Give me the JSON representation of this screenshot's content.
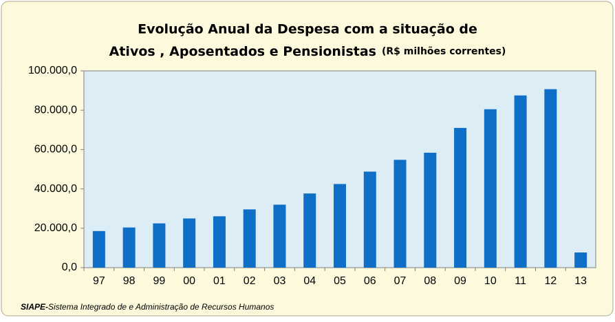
{
  "chart_data": {
    "type": "bar",
    "title_lines": [
      "Evolução Anual da Despesa com a situação de",
      "Ativos , Aposentados e Pensionistas"
    ],
    "subtitle": "(R$ milhões correntes)",
    "categories": [
      "97",
      "98",
      "99",
      "00",
      "01",
      "02",
      "03",
      "04",
      "05",
      "06",
      "07",
      "08",
      "09",
      "10",
      "11",
      "12",
      "13"
    ],
    "values": [
      18600,
      20400,
      22500,
      25000,
      26100,
      29600,
      32000,
      37700,
      42500,
      48800,
      54800,
      58400,
      71000,
      80500,
      87500,
      90700,
      7700
    ],
    "color": "#0f6fc6",
    "ylim": [
      0,
      100000
    ],
    "yticks": [
      {
        "value": 0,
        "label": "0,0"
      },
      {
        "value": 20000,
        "label": "20.000,0"
      },
      {
        "value": 40000,
        "label": "40.000,0"
      },
      {
        "value": 60000,
        "label": "60.000,0"
      },
      {
        "value": 80000,
        "label": "80.000,0"
      },
      {
        "value": 100000,
        "label": "100.000,0"
      }
    ],
    "grid": false,
    "source": {
      "label": "SIAPE-",
      "text": "Sistema Integrado de e Administração de Recursos Humanos"
    }
  }
}
